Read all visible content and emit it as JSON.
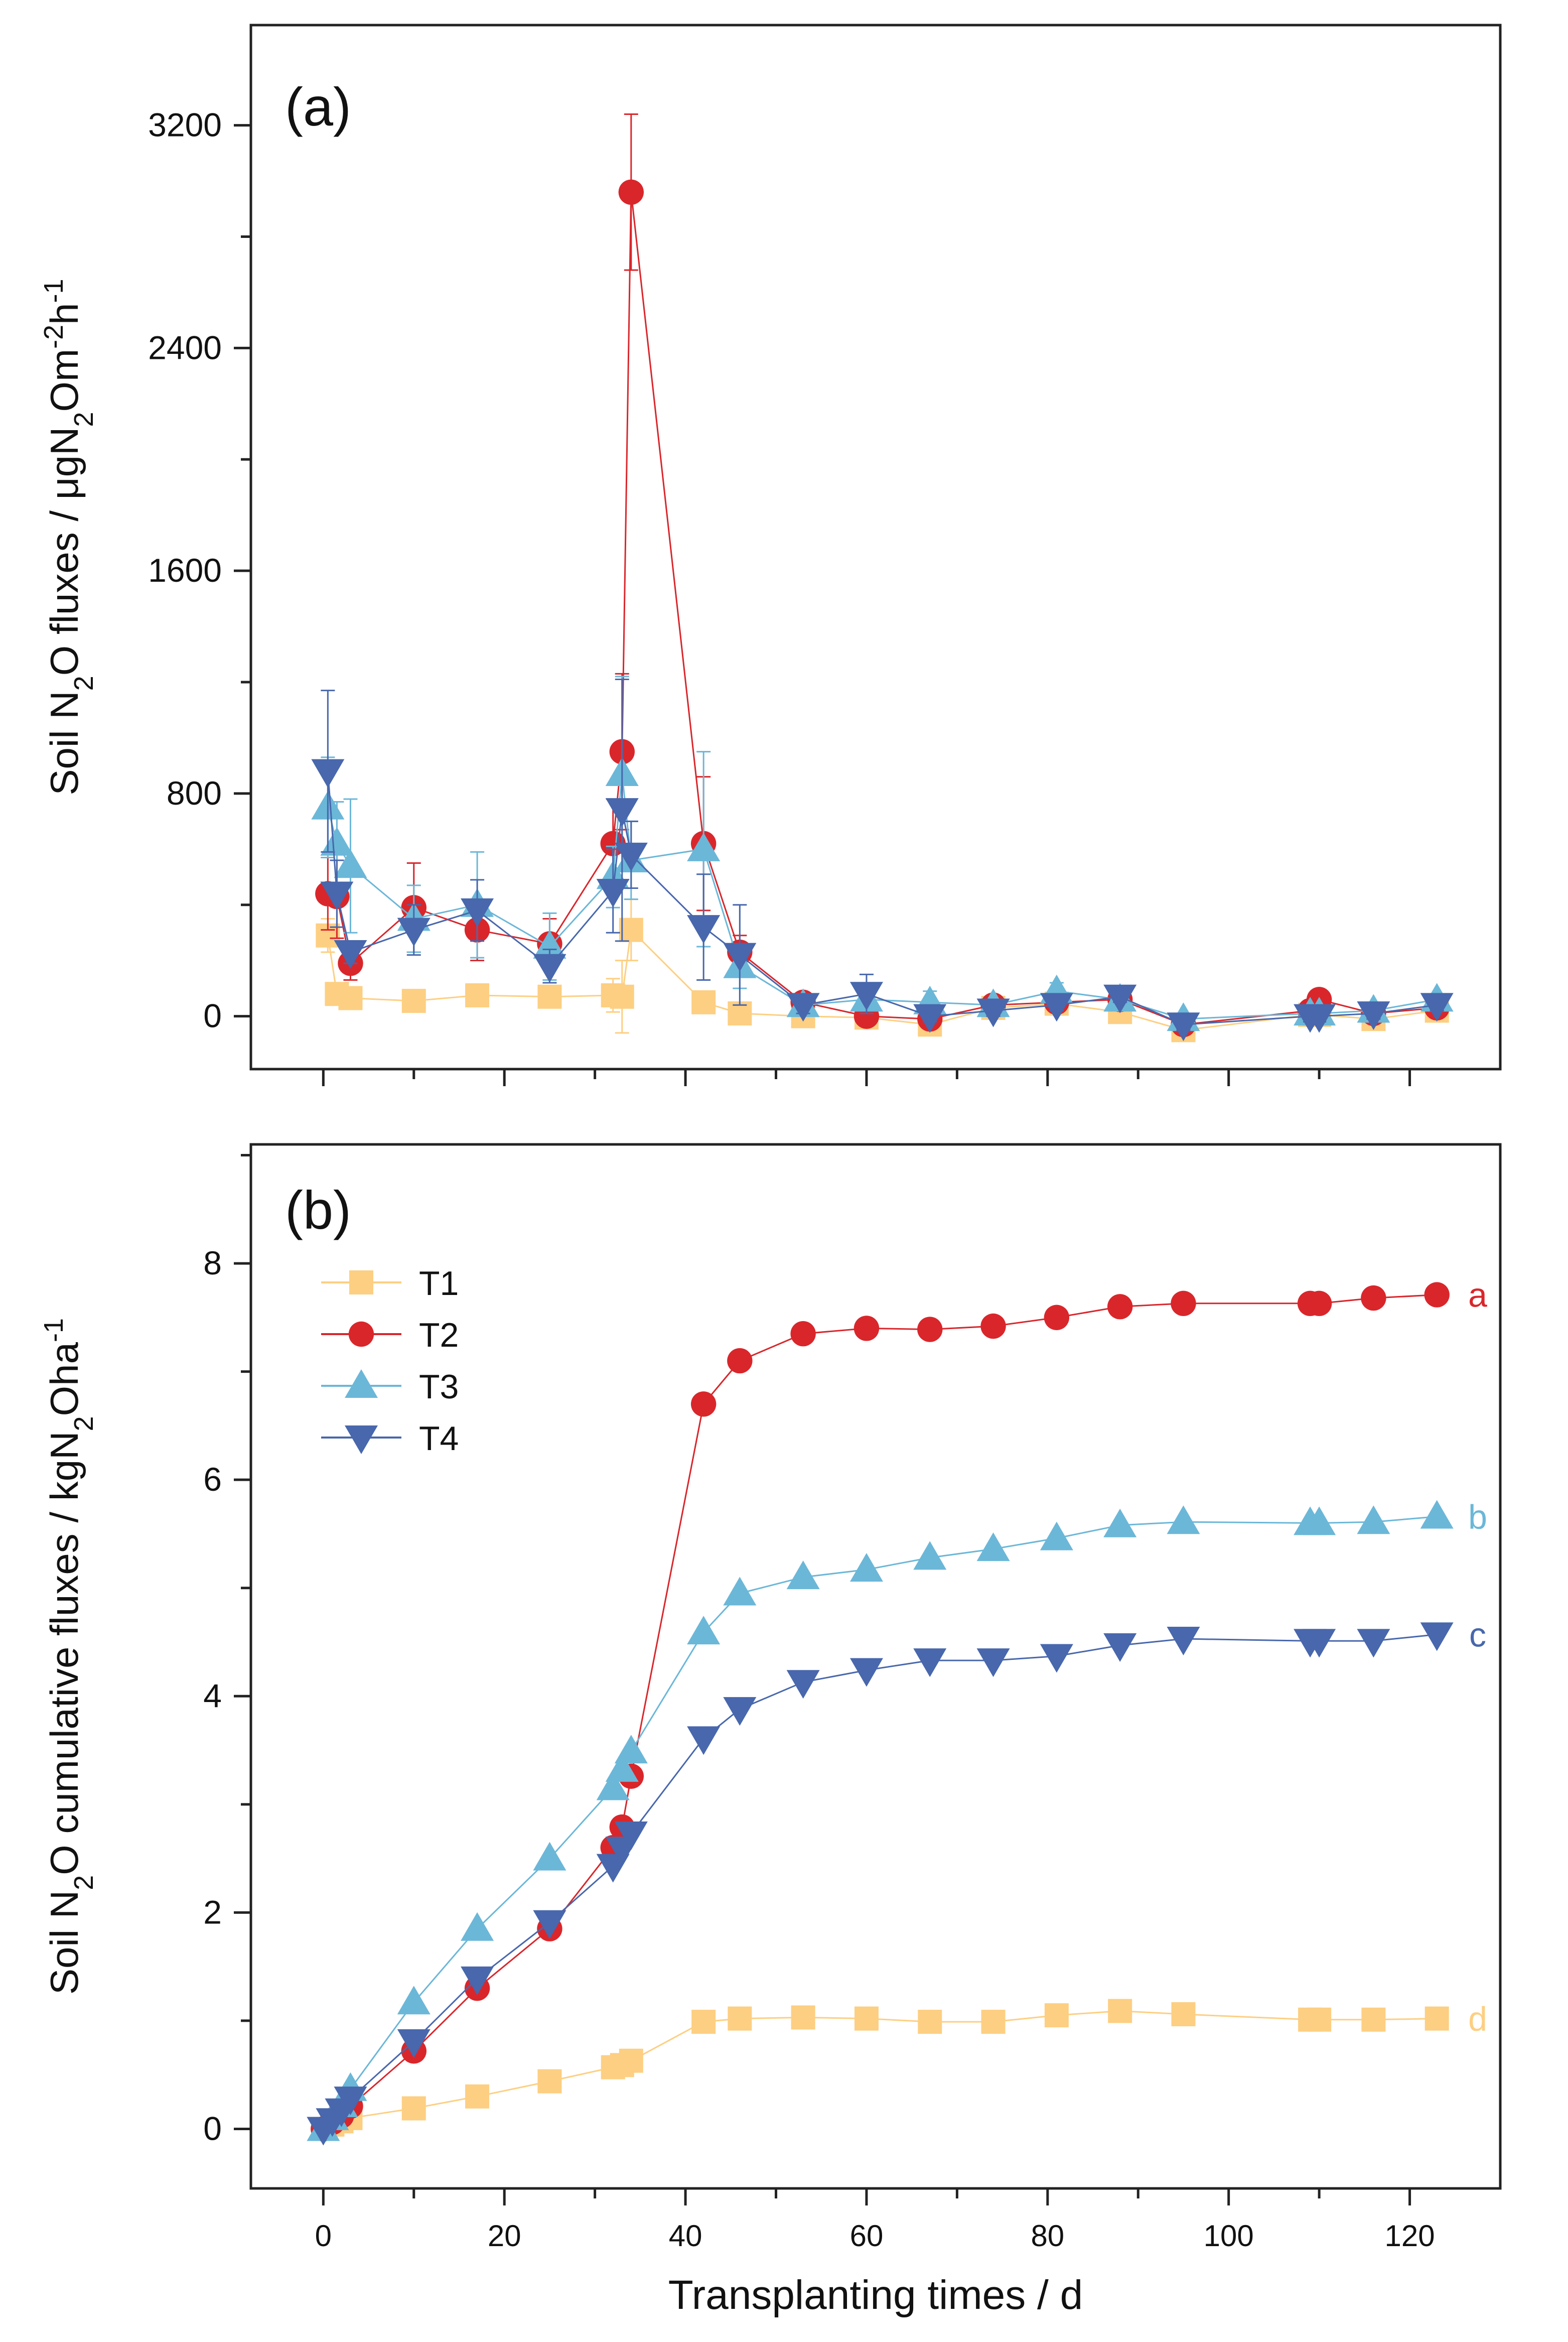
{
  "colors": {
    "T1": "#FDCF82",
    "T2": "#D9262B",
    "T3": "#6BB7D8",
    "T4": "#4867AC",
    "axis": "#222222"
  },
  "chart_data": [
    {
      "type": "line",
      "panel_label": "(a)",
      "title": "",
      "xlabel": "",
      "ylabel_parts": [
        "Soil N",
        "2",
        "O fluxes / μgN",
        "2",
        "Om",
        "-2",
        "h",
        "-1"
      ],
      "xlim": [
        -8,
        130
      ],
      "ylim": [
        -190,
        3560
      ],
      "xticks": [
        0,
        20,
        40,
        60,
        80,
        100,
        120
      ],
      "xtick_labels_visible": false,
      "yticks": [
        0,
        800,
        1600,
        2400,
        3200
      ],
      "ytick_labels": [
        "0",
        "800",
        "1600",
        "2400",
        "3200"
      ],
      "series": [
        {
          "name": "T1",
          "marker": "square",
          "points": [
            [
              0.5,
              290
            ],
            [
              1.5,
              80
            ],
            [
              3,
              65
            ],
            [
              10,
              55
            ],
            [
              17,
              75
            ],
            [
              25,
              70
            ],
            [
              32,
              75
            ],
            [
              33,
              70
            ],
            [
              34,
              310
            ],
            [
              42,
              50
            ],
            [
              46,
              10
            ],
            [
              53,
              0
            ],
            [
              60,
              -5
            ],
            [
              67,
              -30
            ],
            [
              74,
              30
            ],
            [
              81,
              45
            ],
            [
              88,
              15
            ],
            [
              95,
              -50
            ],
            [
              109,
              5
            ],
            [
              110,
              5
            ],
            [
              116,
              -10
            ],
            [
              123,
              20
            ]
          ],
          "errors": [
            60,
            40,
            30,
            30,
            40,
            40,
            60,
            130,
            110,
            30,
            20,
            20,
            20,
            20,
            20,
            30,
            20,
            20,
            20,
            20,
            20,
            20
          ]
        },
        {
          "name": "T2",
          "marker": "circle",
          "points": [
            [
              0.5,
              440
            ],
            [
              1.5,
              430
            ],
            [
              3,
              190
            ],
            [
              10,
              390
            ],
            [
              17,
              310
            ],
            [
              25,
              260
            ],
            [
              32,
              620
            ],
            [
              33,
              950
            ],
            [
              34,
              2960
            ],
            [
              42,
              620
            ],
            [
              46,
              230
            ],
            [
              53,
              50
            ],
            [
              60,
              0
            ],
            [
              67,
              -10
            ],
            [
              74,
              40
            ],
            [
              81,
              50
            ],
            [
              88,
              60
            ],
            [
              95,
              -30
            ],
            [
              109,
              20
            ],
            [
              110,
              60
            ],
            [
              116,
              10
            ],
            [
              123,
              30
            ]
          ],
          "errors": [
            130,
            150,
            60,
            160,
            110,
            90,
            160,
            280,
            280,
            240,
            60,
            20,
            20,
            20,
            20,
            20,
            20,
            20,
            20,
            20,
            20,
            20
          ]
        },
        {
          "name": "T3",
          "marker": "triangle-up",
          "points": [
            [
              0.5,
              750
            ],
            [
              1.5,
              620
            ],
            [
              3,
              540
            ],
            [
              10,
              350
            ],
            [
              17,
              400
            ],
            [
              25,
              250
            ],
            [
              32,
              500
            ],
            [
              33,
              870
            ],
            [
              34,
              560
            ],
            [
              42,
              600
            ],
            [
              46,
              180
            ],
            [
              53,
              40
            ],
            [
              60,
              60
            ],
            [
              67,
              50
            ],
            [
              74,
              40
            ],
            [
              81,
              90
            ],
            [
              88,
              60
            ],
            [
              95,
              -10
            ],
            [
              109,
              10
            ],
            [
              110,
              10
            ],
            [
              116,
              20
            ],
            [
              123,
              60
            ]
          ],
          "errors": [
            180,
            150,
            240,
            120,
            190,
            120,
            110,
            350,
            140,
            350,
            80,
            40,
            40,
            40,
            20,
            30,
            20,
            20,
            20,
            20,
            20,
            20
          ]
        },
        {
          "name": "T4",
          "marker": "triangle-down",
          "points": [
            [
              0.5,
              880
            ],
            [
              1.5,
              440
            ],
            [
              3,
              230
            ],
            [
              10,
              310
            ],
            [
              17,
              380
            ],
            [
              25,
              180
            ],
            [
              32,
              450
            ],
            [
              33,
              740
            ],
            [
              34,
              580
            ],
            [
              42,
              320
            ],
            [
              46,
              220
            ],
            [
              53,
              40
            ],
            [
              60,
              80
            ],
            [
              67,
              0
            ],
            [
              74,
              20
            ],
            [
              81,
              40
            ],
            [
              88,
              70
            ],
            [
              95,
              -30
            ],
            [
              109,
              0
            ],
            [
              110,
              0
            ],
            [
              116,
              10
            ],
            [
              123,
              40
            ]
          ],
          "errors": [
            290,
            120,
            40,
            90,
            110,
            60,
            150,
            470,
            120,
            190,
            180,
            30,
            70,
            20,
            20,
            20,
            20,
            20,
            20,
            20,
            20,
            20
          ]
        }
      ]
    },
    {
      "type": "line",
      "panel_label": "(b)",
      "title": "",
      "xlabel": "Transplanting times / d",
      "ylabel_parts": [
        "Soil N",
        "2",
        "O cumulative fluxes / kgN",
        "2",
        "Oha",
        "-1"
      ],
      "xlim": [
        -8,
        130
      ],
      "ylim": [
        -0.55,
        9.1
      ],
      "xticks": [
        0,
        20,
        40,
        60,
        80,
        100,
        120
      ],
      "xtick_labels": [
        "0",
        "20",
        "40",
        "60",
        "80",
        "100",
        "120"
      ],
      "yticks": [
        0,
        2,
        4,
        6,
        8
      ],
      "ytick_labels": [
        "0",
        "2",
        "4",
        "6",
        "8"
      ],
      "legend": {
        "position": "top-left",
        "entries": [
          "T1",
          "T2",
          "T3",
          "T4"
        ]
      },
      "significance_letters": {
        "T1": "d",
        "T2": "a",
        "T3": "b",
        "T4": "c"
      },
      "series": [
        {
          "name": "T1",
          "marker": "square",
          "points": [
            [
              0,
              0
            ],
            [
              1,
              0.04
            ],
            [
              2,
              0.07
            ],
            [
              3,
              0.1
            ],
            [
              10,
              0.19
            ],
            [
              17,
              0.3
            ],
            [
              25,
              0.44
            ],
            [
              32,
              0.57
            ],
            [
              33,
              0.59
            ],
            [
              34,
              0.63
            ],
            [
              42,
              0.99
            ],
            [
              46,
              1.02
            ],
            [
              53,
              1.03
            ],
            [
              60,
              1.02
            ],
            [
              67,
              0.99
            ],
            [
              74,
              0.99
            ],
            [
              81,
              1.05
            ],
            [
              88,
              1.09
            ],
            [
              95,
              1.06
            ],
            [
              109,
              1.01
            ],
            [
              110,
              1.01
            ],
            [
              116,
              1.01
            ],
            [
              123,
              1.02
            ]
          ]
        },
        {
          "name": "T2",
          "marker": "circle",
          "points": [
            [
              0,
              0
            ],
            [
              1,
              0.06
            ],
            [
              2,
              0.12
            ],
            [
              3,
              0.21
            ],
            [
              10,
              0.72
            ],
            [
              17,
              1.3
            ],
            [
              25,
              1.85
            ],
            [
              32,
              2.6
            ],
            [
              33,
              2.79
            ],
            [
              34,
              3.26
            ],
            [
              42,
              6.7
            ],
            [
              46,
              7.1
            ],
            [
              53,
              7.35
            ],
            [
              60,
              7.4
            ],
            [
              67,
              7.39
            ],
            [
              74,
              7.42
            ],
            [
              81,
              7.5
            ],
            [
              88,
              7.6
            ],
            [
              95,
              7.63
            ],
            [
              109,
              7.63
            ],
            [
              110,
              7.63
            ],
            [
              116,
              7.68
            ],
            [
              123,
              7.71
            ]
          ]
        },
        {
          "name": "T3",
          "marker": "triangle-up",
          "points": [
            [
              0,
              0
            ],
            [
              1,
              0.1
            ],
            [
              2,
              0.22
            ],
            [
              3,
              0.37
            ],
            [
              10,
              1.17
            ],
            [
              17,
              1.85
            ],
            [
              25,
              2.5
            ],
            [
              32,
              3.15
            ],
            [
              33,
              3.32
            ],
            [
              34,
              3.49
            ],
            [
              42,
              4.59
            ],
            [
              46,
              4.95
            ],
            [
              53,
              5.1
            ],
            [
              60,
              5.17
            ],
            [
              67,
              5.28
            ],
            [
              74,
              5.36
            ],
            [
              81,
              5.46
            ],
            [
              88,
              5.58
            ],
            [
              95,
              5.61
            ],
            [
              109,
              5.6
            ],
            [
              110,
              5.6
            ],
            [
              116,
              5.61
            ],
            [
              123,
              5.66
            ]
          ]
        },
        {
          "name": "T4",
          "marker": "triangle-down",
          "points": [
            [
              0,
              0
            ],
            [
              1,
              0.08
            ],
            [
              2,
              0.17
            ],
            [
              3,
              0.28
            ],
            [
              10,
              0.81
            ],
            [
              17,
              1.39
            ],
            [
              25,
              1.91
            ],
            [
              32,
              2.43
            ],
            [
              33,
              2.59
            ],
            [
              34,
              2.73
            ],
            [
              42,
              3.61
            ],
            [
              46,
              3.88
            ],
            [
              53,
              4.13
            ],
            [
              60,
              4.24
            ],
            [
              67,
              4.33
            ],
            [
              74,
              4.33
            ],
            [
              81,
              4.37
            ],
            [
              88,
              4.47
            ],
            [
              95,
              4.53
            ],
            [
              109,
              4.51
            ],
            [
              110,
              4.51
            ],
            [
              116,
              4.51
            ],
            [
              123,
              4.57
            ]
          ]
        }
      ]
    }
  ]
}
